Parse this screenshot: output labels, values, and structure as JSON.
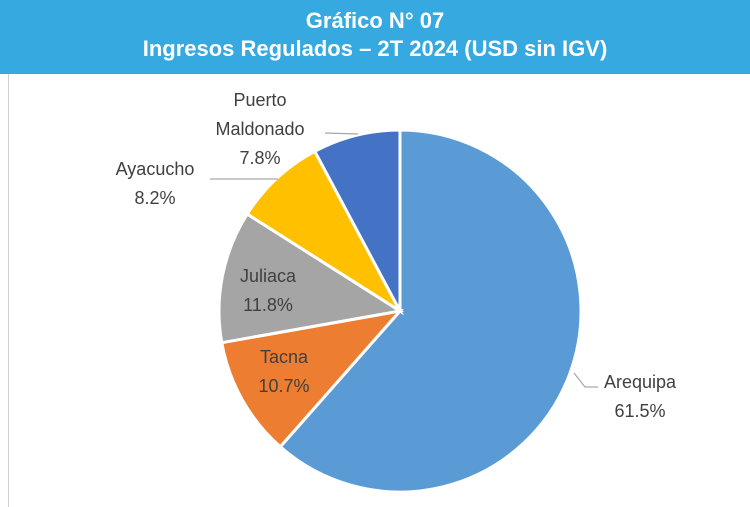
{
  "chart_data": {
    "type": "pie",
    "title": "Gráfico N° 07",
    "subtitle": "Ingresos Regulados – 2T 2024 (USD sin IGV)",
    "categories": [
      "Arequipa",
      "Tacna",
      "Juliaca",
      "Ayacucho",
      "Puerto Maldonado"
    ],
    "values": [
      61.5,
      10.7,
      11.8,
      8.2,
      7.8
    ],
    "value_labels": [
      "61.5%",
      "10.7%",
      "11.8%",
      "8.2%",
      "7.8%"
    ],
    "colors": [
      "#5b9bd5",
      "#ed7d31",
      "#a5a5a5",
      "#ffc000",
      "#4472c4"
    ]
  }
}
